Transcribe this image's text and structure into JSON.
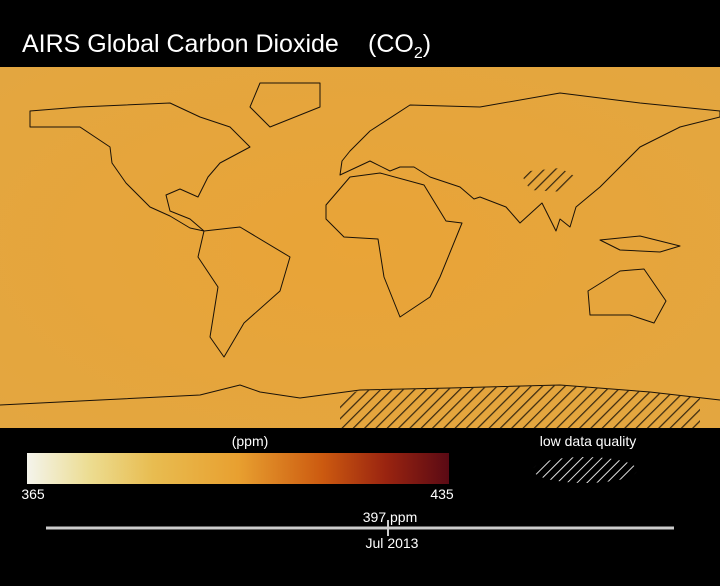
{
  "title": {
    "main": "AIRS Global Carbon Dioxide",
    "formula": [
      "(CO",
      "2",
      ")"
    ]
  },
  "colorbar": {
    "unit": "(ppm)",
    "min_label": "365",
    "max_label": "435"
  },
  "legend": {
    "hatch_label": "low data quality"
  },
  "timeline": {
    "value_label": "397 ppm",
    "month": "Jul",
    "year": "2013"
  }
}
